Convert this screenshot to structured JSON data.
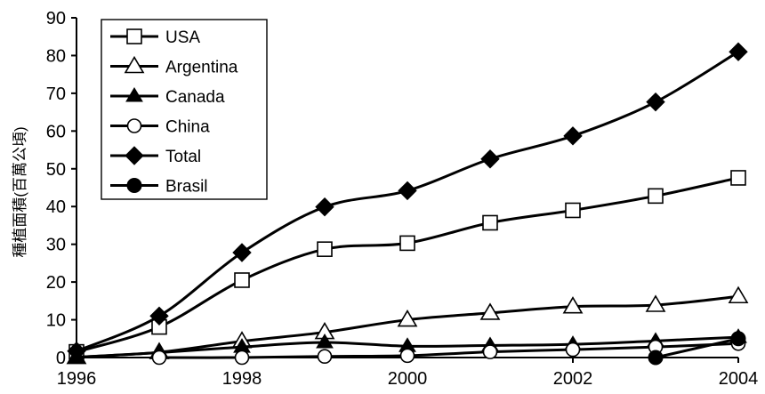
{
  "chart_data": {
    "type": "line",
    "title": "",
    "xlabel": "",
    "ylabel": "種植面積(百萬公頃)",
    "x": [
      1996,
      1997,
      1998,
      1999,
      2000,
      2001,
      2002,
      2003,
      2004
    ],
    "xlim": [
      1996,
      2004
    ],
    "ylim": [
      0,
      90
    ],
    "x_ticks": [
      1996,
      1998,
      2000,
      2002,
      2004
    ],
    "y_ticks": [
      0,
      10,
      20,
      30,
      40,
      50,
      60,
      70,
      80,
      90
    ],
    "grid": false,
    "legend_position": "top-left",
    "series": [
      {
        "name": "USA",
        "marker": "open-square",
        "values": [
          1.5,
          8.1,
          20.5,
          28.7,
          30.3,
          35.7,
          39.0,
          42.8,
          47.6
        ]
      },
      {
        "name": "Argentina",
        "marker": "open-triangle",
        "values": [
          0.1,
          1.4,
          4.3,
          6.7,
          10.0,
          11.8,
          13.5,
          13.9,
          16.2
        ]
      },
      {
        "name": "Canada",
        "marker": "filled-triangle",
        "values": [
          0.1,
          1.3,
          2.8,
          4.0,
          3.0,
          3.2,
          3.5,
          4.4,
          5.4
        ]
      },
      {
        "name": "China",
        "marker": "open-circle",
        "values": [
          null,
          0.0,
          0.0,
          0.3,
          0.5,
          1.5,
          2.1,
          2.8,
          3.7
        ]
      },
      {
        "name": "Total",
        "marker": "filled-diamond",
        "values": [
          1.7,
          11.0,
          27.8,
          39.9,
          44.2,
          52.6,
          58.7,
          67.7,
          81.0
        ]
      },
      {
        "name": "Brasil",
        "marker": "filled-circle",
        "values": [
          null,
          null,
          null,
          null,
          null,
          null,
          null,
          0.0,
          5.0
        ]
      }
    ]
  }
}
